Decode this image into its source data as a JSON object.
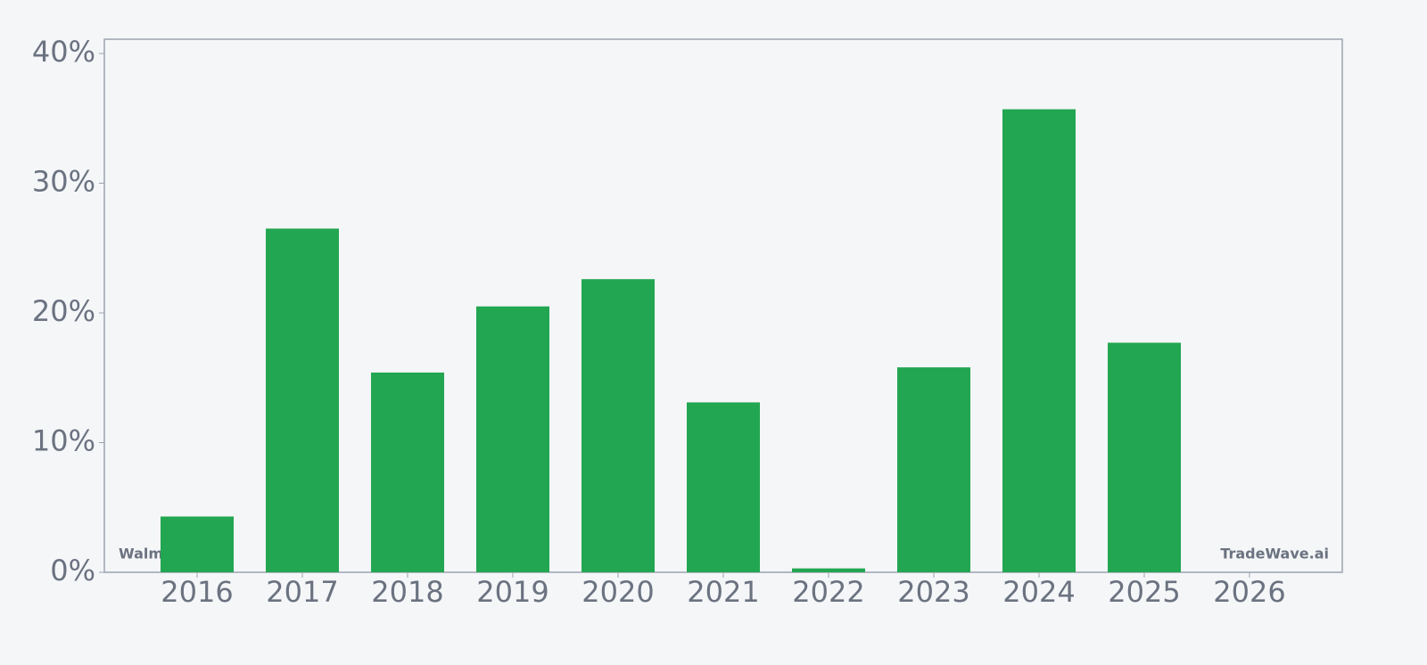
{
  "chart_data": {
    "type": "bar",
    "categories": [
      "2016",
      "2017",
      "2018",
      "2019",
      "2020",
      "2021",
      "2022",
      "2023",
      "2024",
      "2025",
      "2026"
    ],
    "values": [
      4.3,
      26.5,
      15.4,
      20.5,
      22.6,
      13.1,
      0.3,
      15.8,
      35.7,
      17.7,
      null
    ],
    "color": "#23a651",
    "ylim": [
      0,
      41.1
    ],
    "yticks": [
      {
        "value": 0,
        "label": "0%"
      },
      {
        "value": 10,
        "label": "10%"
      },
      {
        "value": 20,
        "label": "20%"
      },
      {
        "value": 30,
        "label": "30%"
      },
      {
        "value": 40,
        "label": "40%"
      }
    ],
    "annotations": [
      "Walmart",
      "TradeWave.ai"
    ]
  }
}
